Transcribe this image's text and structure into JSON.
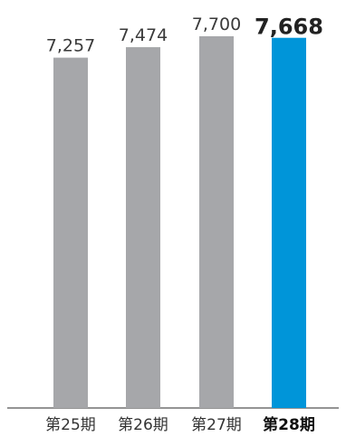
{
  "chart_data": {
    "type": "bar",
    "categories": [
      "第25期",
      "第26期",
      "第27期",
      "第28期"
    ],
    "values": [
      7257,
      7474,
      7700,
      7668
    ],
    "value_labels": [
      "7,257",
      "7,474",
      "7,700",
      "7,668"
    ],
    "highlight_index": 3,
    "title": "",
    "xlabel": "",
    "ylabel": "",
    "ylim": [
      0,
      7700
    ],
    "grid": false,
    "colors": {
      "bar": "#a6a7aa",
      "highlight": "#0095d9",
      "axis": "#555555"
    }
  }
}
